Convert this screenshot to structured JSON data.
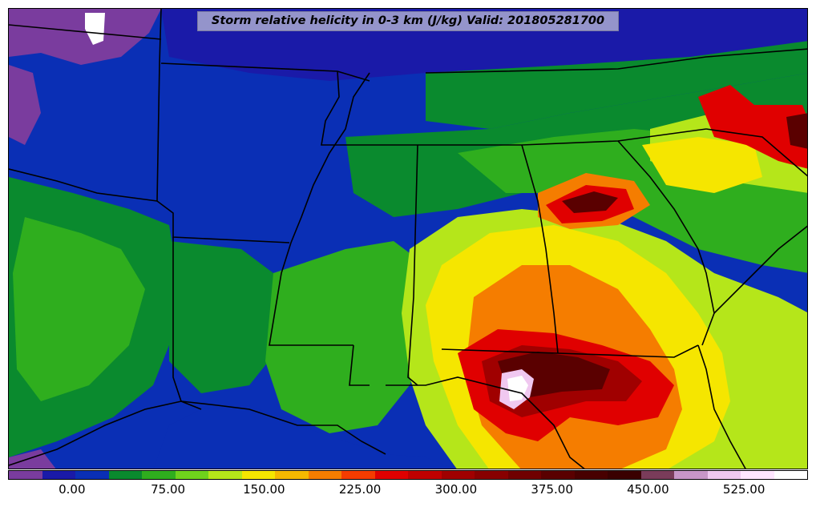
{
  "title": "Storm relative helicity in 0-3 km (J/kg) Valid: 201805281700",
  "colorbar": {
    "colors": [
      "#7a3c9e",
      "#1a1aa8",
      "#0a2fb5",
      "#0a8a2e",
      "#2fae1e",
      "#6fd21c",
      "#b5e61a",
      "#f5e600",
      "#f5b800",
      "#f57d00",
      "#f53c00",
      "#e00000",
      "#c00000",
      "#a00000",
      "#880000",
      "#700000",
      "#5a0000",
      "#480000",
      "#3a0000",
      "#7a3c5a",
      "#c896c8",
      "#f0c8f0",
      "#ffe6ff",
      "#ffffff"
    ],
    "ticks": [
      {
        "label": "0.00",
        "value": 0
      },
      {
        "label": "75.00",
        "value": 75
      },
      {
        "label": "150.00",
        "value": 150
      },
      {
        "label": "225.00",
        "value": 225
      },
      {
        "label": "300.00",
        "value": 300
      },
      {
        "label": "375.00",
        "value": 375
      },
      {
        "label": "450.00",
        "value": 450
      },
      {
        "label": "525.00",
        "value": 525
      }
    ],
    "range": [
      -50,
      575
    ]
  },
  "map": {
    "colors": {
      "background": "#0a2fb5",
      "purple": "#7a3c9e",
      "blue": "#0a2fb5",
      "dark_green": "#0a8a2e",
      "green": "#2fae1e",
      "light_green": "#6fd21c",
      "lime": "#b5e61a",
      "yellow": "#f5e600",
      "orange": "#f57d00",
      "red": "#e00000",
      "dark_red": "#a00000",
      "maroon": "#5a0000",
      "pink": "#f0c8f0",
      "white": "#ffffff",
      "boundary": "#000000"
    }
  }
}
